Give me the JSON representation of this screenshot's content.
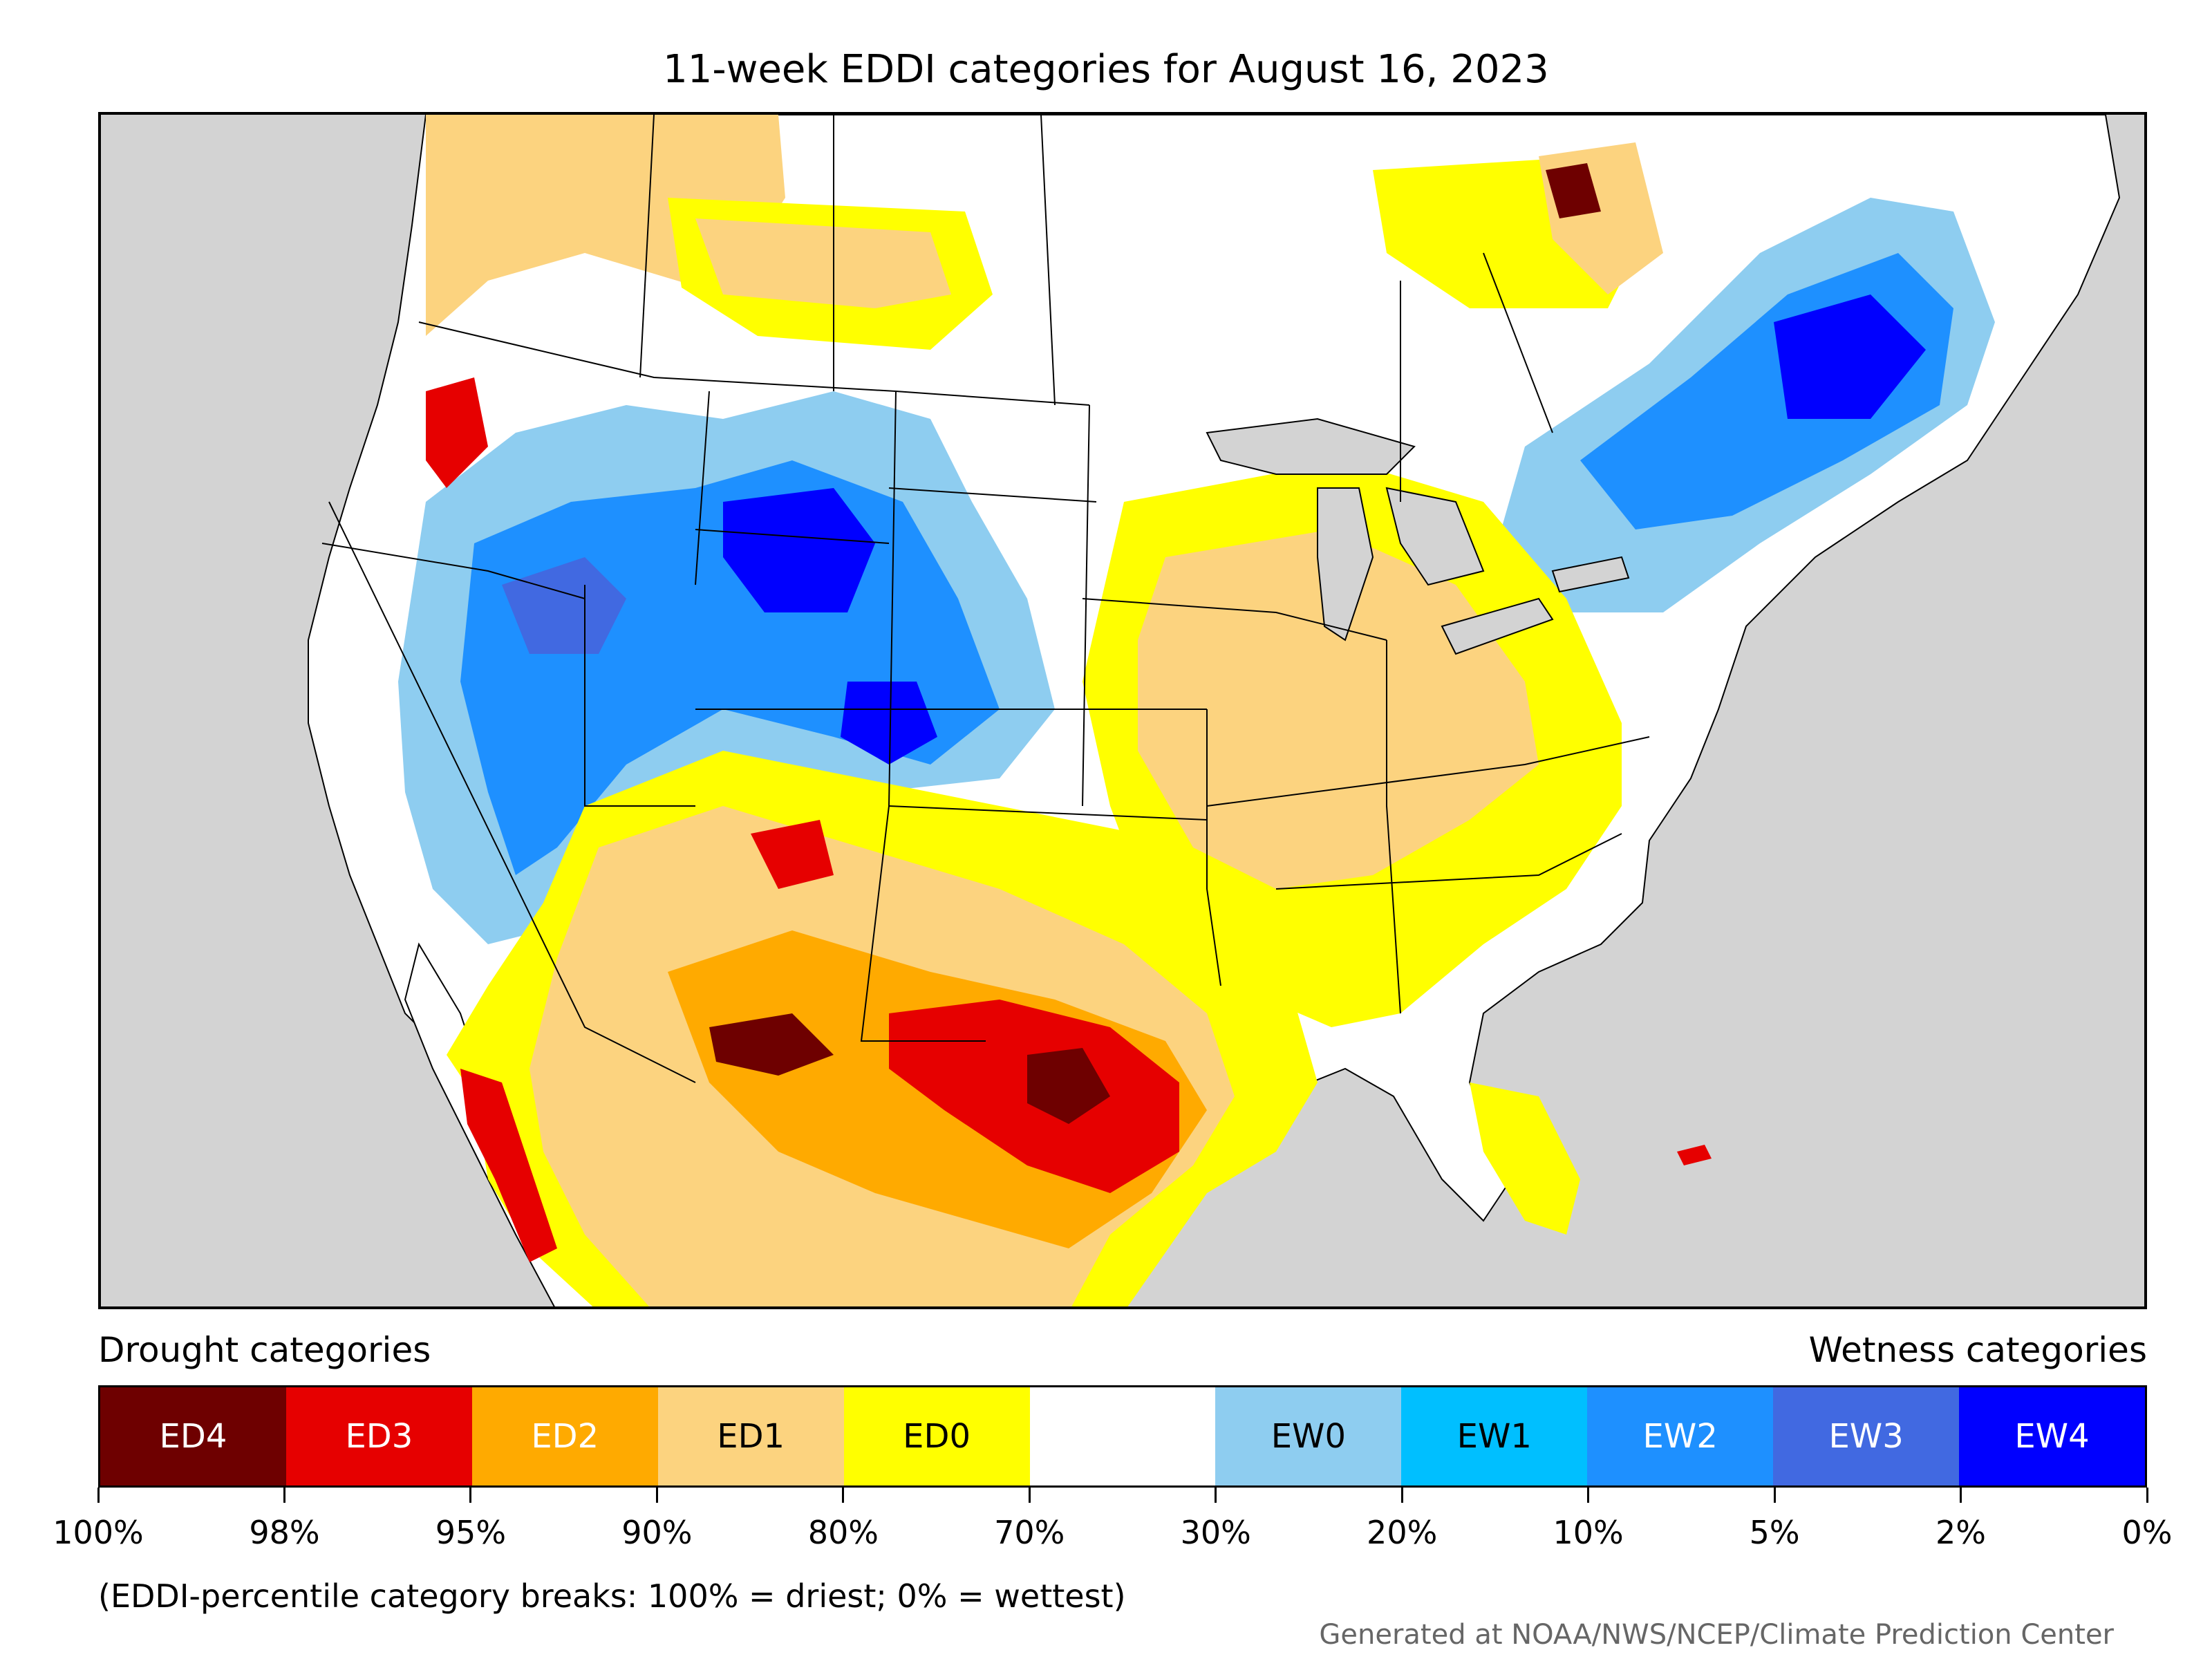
{
  "title": "11-week EDDI categories for August 16, 2023",
  "legend": {
    "left_heading": "Drought categories",
    "right_heading": "Wetness categories",
    "categories": [
      {
        "label": "ED4",
        "color": "#6e0000",
        "text_color": "#ffffff"
      },
      {
        "label": "ED3",
        "color": "#e60000",
        "text_color": "#ffffff"
      },
      {
        "label": "ED2",
        "color": "#ffaa00",
        "text_color": "#ffffff"
      },
      {
        "label": "ED1",
        "color": "#fcd37f",
        "text_color": "#000000"
      },
      {
        "label": "ED0",
        "color": "#ffff00",
        "text_color": "#000000"
      },
      {
        "label": "",
        "color": "#ffffff",
        "text_color": "#000000"
      },
      {
        "label": "EW0",
        "color": "#8ecdf0",
        "text_color": "#000000"
      },
      {
        "label": "EW1",
        "color": "#00bfff",
        "text_color": "#000000"
      },
      {
        "label": "EW2",
        "color": "#1e90ff",
        "text_color": "#ffffff"
      },
      {
        "label": "EW3",
        "color": "#4169e1",
        "text_color": "#ffffff"
      },
      {
        "label": "EW4",
        "color": "#0000ff",
        "text_color": "#ffffff"
      }
    ],
    "ticks": [
      "100%",
      "98%",
      "95%",
      "90%",
      "80%",
      "70%",
      "30%",
      "20%",
      "10%",
      "5%",
      "2%",
      "0%"
    ]
  },
  "note": "(EDDI-percentile category breaks: 100% = driest; 0% = wettest)",
  "credit": "Generated at NOAA/NWS/NCEP/Climate Prediction Center"
}
